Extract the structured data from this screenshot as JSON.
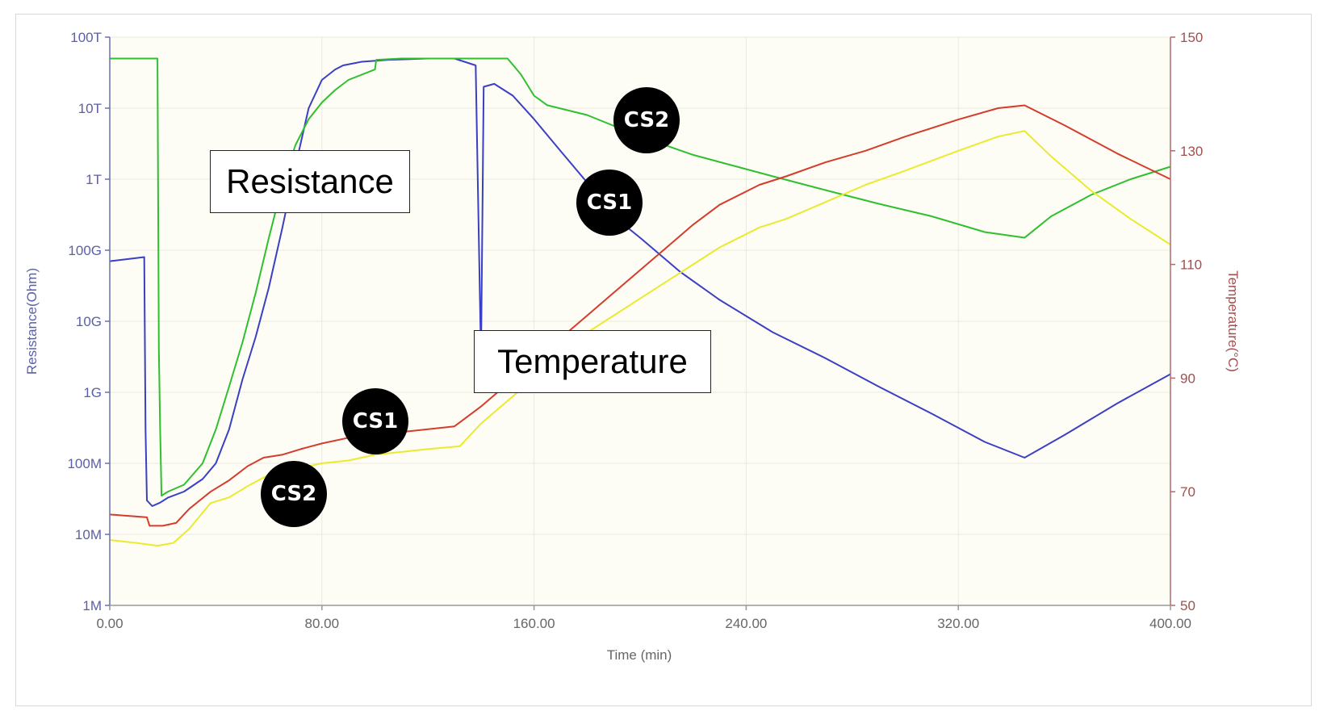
{
  "chart_data": {
    "type": "line",
    "xlabel": "Time (min)",
    "ylabel_left": "Resistance(Ohm)",
    "ylabel_right": "Temperature(°C)",
    "x_ticks": [
      "0.00",
      "80.00",
      "160.00",
      "240.00",
      "320.00",
      "400.00"
    ],
    "xlim": [
      0,
      400
    ],
    "left_axis": {
      "scale": "log",
      "ylim": [
        1000000,
        100000000000000
      ],
      "ticks": [
        {
          "label": "1M",
          "value": 1000000.0
        },
        {
          "label": "10M",
          "value": 10000000.0
        },
        {
          "label": "100M",
          "value": 100000000.0
        },
        {
          "label": "1G",
          "value": 1000000000.0
        },
        {
          "label": "10G",
          "value": 10000000000.0
        },
        {
          "label": "100G",
          "value": 100000000000.0
        },
        {
          "label": "1T",
          "value": 1000000000000.0
        },
        {
          "label": "10T",
          "value": 10000000000000.0
        },
        {
          "label": "100T",
          "value": 100000000000000.0
        }
      ]
    },
    "right_axis": {
      "scale": "linear",
      "ylim": [
        50,
        150
      ],
      "ticks": [
        "50",
        "70",
        "90",
        "110",
        "130",
        "150"
      ]
    },
    "grid": true,
    "series": [
      {
        "axis": "left",
        "color": "#3a3fc4",
        "points": [
          [
            0,
            70000000000.0
          ],
          [
            13,
            80000000000.0
          ],
          [
            13.5,
            300000000.0
          ],
          [
            14,
            30000000.0
          ],
          [
            16,
            25000000.0
          ],
          [
            19,
            28000000.0
          ],
          [
            22,
            33000000.0
          ],
          [
            28,
            40000000.0
          ],
          [
            35,
            60000000.0
          ],
          [
            40,
            100000000.0
          ],
          [
            45,
            300000000.0
          ],
          [
            50,
            1500000000.0
          ],
          [
            55,
            6000000000.0
          ],
          [
            60,
            30000000000.0
          ],
          [
            65,
            200000000000.0
          ],
          [
            70,
            1500000000000.0
          ],
          [
            75,
            10000000000000.0
          ],
          [
            80,
            25000000000000.0
          ],
          [
            85,
            35000000000000.0
          ],
          [
            88,
            40000000000000.0
          ],
          [
            95,
            45000000000000.0
          ],
          [
            105,
            48000000000000.0
          ],
          [
            120,
            50000000000000.0
          ],
          [
            130,
            50000000000000.0
          ],
          [
            138,
            40000000000000.0
          ],
          [
            140,
            3000000000.0
          ],
          [
            141,
            20000000000000.0
          ],
          [
            145,
            22000000000000.0
          ],
          [
            152,
            15000000000000.0
          ],
          [
            160,
            7000000000000.0
          ],
          [
            170,
            2500000000000.0
          ],
          [
            180,
            900000000000.0
          ],
          [
            190,
            300000000000.0
          ],
          [
            200,
            150000000000.0
          ],
          [
            215,
            50000000000.0
          ],
          [
            230,
            20000000000.0
          ],
          [
            250,
            7000000000.0
          ],
          [
            270,
            3000000000.0
          ],
          [
            290,
            1200000000.0
          ],
          [
            310,
            500000000.0
          ],
          [
            330,
            200000000.0
          ],
          [
            345,
            120000000.0
          ],
          [
            360,
            250000000.0
          ],
          [
            380,
            700000000.0
          ],
          [
            400,
            1800000000.0
          ]
        ]
      },
      {
        "axis": "left",
        "color": "#2fbf2f",
        "points": [
          [
            0,
            50000000000000.0
          ],
          [
            18,
            50000000000000.0
          ],
          [
            18.5,
            4000000000.0
          ],
          [
            19,
            300000000.0
          ],
          [
            19.5,
            35000000.0
          ],
          [
            22,
            40000000.0
          ],
          [
            28,
            50000000.0
          ],
          [
            35,
            100000000.0
          ],
          [
            40,
            300000000.0
          ],
          [
            45,
            1200000000.0
          ],
          [
            50,
            5000000000.0
          ],
          [
            55,
            25000000000.0
          ],
          [
            60,
            150000000000.0
          ],
          [
            65,
            800000000000.0
          ],
          [
            70,
            3000000000000.0
          ],
          [
            75,
            7000000000000.0
          ],
          [
            80,
            12000000000000.0
          ],
          [
            85,
            18000000000000.0
          ],
          [
            90,
            25000000000000.0
          ],
          [
            100,
            35000000000000.0
          ],
          [
            100.5,
            48000000000000.0
          ],
          [
            110,
            50000000000000.0
          ],
          [
            150,
            50000000000000.0
          ],
          [
            155,
            30000000000000.0
          ],
          [
            160,
            15000000000000.0
          ],
          [
            165,
            11000000000000.0
          ],
          [
            180,
            8000000000000.0
          ],
          [
            200,
            4000000000000.0
          ],
          [
            220,
            2200000000000.0
          ],
          [
            250,
            1100000000000.0
          ],
          [
            270,
            700000000000.0
          ],
          [
            290,
            450000000000.0
          ],
          [
            310,
            300000000000.0
          ],
          [
            330,
            180000000000.0
          ],
          [
            345,
            150000000000.0
          ],
          [
            355,
            300000000000.0
          ],
          [
            370,
            600000000000.0
          ],
          [
            385,
            1000000000000.0
          ],
          [
            400,
            1500000000000.0
          ]
        ]
      },
      {
        "axis": "right",
        "color": "#d43c2c",
        "points": [
          [
            0,
            66
          ],
          [
            14,
            65.5
          ],
          [
            15,
            64
          ],
          [
            20,
            64
          ],
          [
            25,
            64.5
          ],
          [
            30,
            67
          ],
          [
            38,
            70
          ],
          [
            45,
            72
          ],
          [
            52,
            74.5
          ],
          [
            58,
            76
          ],
          [
            65,
            76.5
          ],
          [
            72,
            77.5
          ],
          [
            80,
            78.5
          ],
          [
            90,
            79.5
          ],
          [
            100,
            80
          ],
          [
            110,
            80.5
          ],
          [
            130,
            81.5
          ],
          [
            140,
            85
          ],
          [
            150,
            89
          ],
          [
            160,
            93
          ],
          [
            170,
            97
          ],
          [
            180,
            101
          ],
          [
            190,
            105
          ],
          [
            200,
            109
          ],
          [
            210,
            113
          ],
          [
            220,
            117
          ],
          [
            230,
            120.5
          ],
          [
            245,
            124
          ],
          [
            255,
            125.5
          ],
          [
            270,
            128
          ],
          [
            285,
            130
          ],
          [
            300,
            132.5
          ],
          [
            320,
            135.5
          ],
          [
            335,
            137.5
          ],
          [
            345,
            138
          ],
          [
            360,
            134.5
          ],
          [
            380,
            129.5
          ],
          [
            400,
            125
          ]
        ]
      },
      {
        "axis": "right",
        "color": "#eaea2e",
        "points": [
          [
            0,
            61.5
          ],
          [
            10,
            61
          ],
          [
            18,
            60.5
          ],
          [
            24,
            61
          ],
          [
            30,
            63.5
          ],
          [
            38,
            68
          ],
          [
            45,
            69
          ],
          [
            52,
            71
          ],
          [
            60,
            73
          ],
          [
            70,
            74
          ],
          [
            80,
            75
          ],
          [
            90,
            75.5
          ],
          [
            100,
            76.5
          ],
          [
            120,
            77.5
          ],
          [
            132,
            78
          ],
          [
            140,
            82
          ],
          [
            150,
            86
          ],
          [
            160,
            90
          ],
          [
            170,
            94
          ],
          [
            180,
            98
          ],
          [
            190,
            101
          ],
          [
            200,
            104
          ],
          [
            210,
            107
          ],
          [
            220,
            110
          ],
          [
            230,
            113
          ],
          [
            245,
            116.5
          ],
          [
            255,
            118
          ],
          [
            270,
            121
          ],
          [
            285,
            124
          ],
          [
            300,
            126.5
          ],
          [
            320,
            130
          ],
          [
            335,
            132.5
          ],
          [
            345,
            133.5
          ],
          [
            355,
            129
          ],
          [
            370,
            123
          ],
          [
            385,
            118
          ],
          [
            400,
            113.5
          ]
        ]
      }
    ],
    "annotations": [
      {
        "text": "Resistance",
        "style": "box"
      },
      {
        "text": "Temperature",
        "style": "box"
      },
      {
        "text": "CS2",
        "style": "badge",
        "target": "resistance-green"
      },
      {
        "text": "CS1",
        "style": "badge",
        "target": "resistance-blue"
      },
      {
        "text": "CS1",
        "style": "badge",
        "target": "temperature-red"
      },
      {
        "text": "CS2",
        "style": "badge",
        "target": "temperature-yellow"
      }
    ]
  }
}
